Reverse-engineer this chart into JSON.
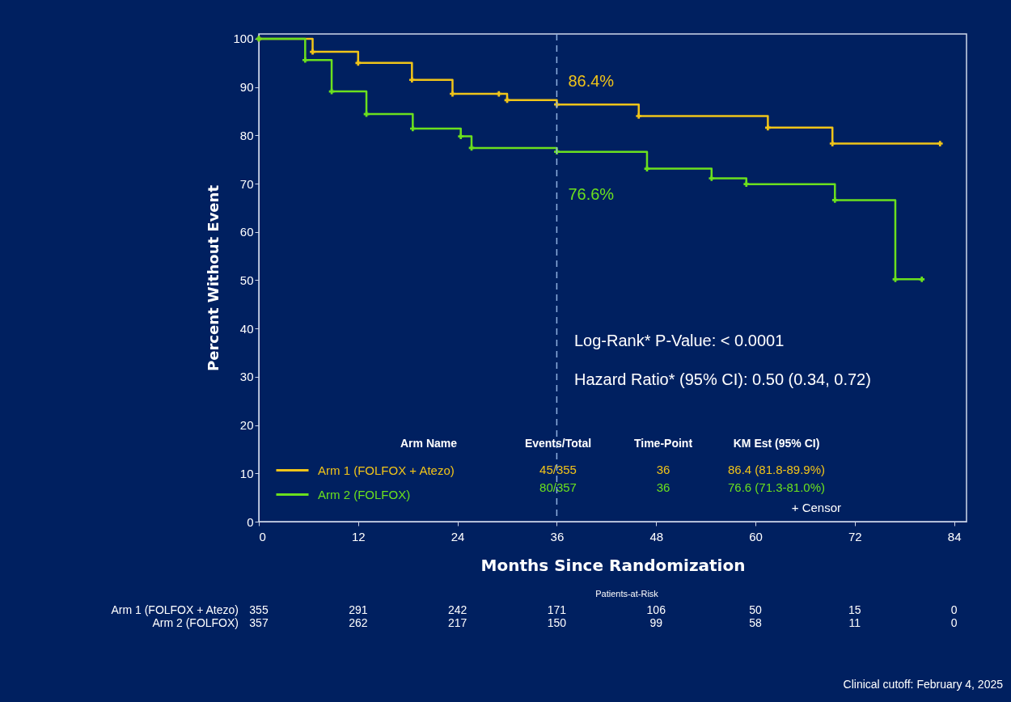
{
  "chart_data": {
    "type": "step",
    "xlabel": "Months Since Randomization",
    "ylabel": "Percent Without Event",
    "xlim": [
      0,
      85.5
    ],
    "ylim": [
      0,
      101
    ],
    "xticks": [
      0,
      12,
      24,
      36,
      48,
      60,
      72,
      84
    ],
    "yticks": [
      0,
      10,
      20,
      30,
      40,
      50,
      60,
      70,
      80,
      90,
      100
    ],
    "grid": false,
    "legend": "bottom",
    "marker": "cross",
    "line_style": "solid",
    "series": [
      {
        "name": "Arm 1 (FOLFOX + Atezo)",
        "color": "#f0c419",
        "x": [
          0,
          6.5,
          12,
          18.5,
          23.4,
          29,
          30,
          36,
          45.9,
          61.5,
          69.3,
          82.3
        ],
        "values": [
          100,
          97.3,
          95,
          91.5,
          88.6,
          88.6,
          87.3,
          86.4,
          84,
          81.6,
          78.3,
          78.3
        ]
      },
      {
        "name": "Arm 2 (FOLFOX)",
        "color": "#6be01e",
        "x": [
          0,
          5.6,
          8.8,
          13,
          18.6,
          24.4,
          25.7,
          36,
          46.9,
          54.7,
          58.9,
          69.6,
          76.9,
          80.1
        ],
        "values": [
          100,
          95.6,
          89.1,
          84.4,
          81.4,
          79.8,
          77.4,
          76.6,
          73.1,
          71.1,
          69.9,
          66.6,
          50.2,
          50.2
        ]
      }
    ],
    "ref_lines": [
      {
        "axis": "x",
        "value": 36,
        "color": "#8fb0e0",
        "line_style": "dashed"
      }
    ],
    "annotations": [
      {
        "text": "86.4%",
        "x": 36,
        "y": 86.4
      },
      {
        "text": "76.6%",
        "x": 36,
        "y": 76.6
      },
      "Log-Rank* P-Value: < 0.0001",
      "Hazard Ratio* (95% CI): 0.50 (0.34, 0.72)",
      "Arm Name",
      "Events/Total",
      "Time-Point",
      "KM Est (95% CI)",
      "45/355",
      "36",
      "86.4 (81.8-89.9%)",
      "80/357",
      "36",
      "76.6 (71.3-81.0%)",
      "+ Censor",
      "Patients-at-Risk",
      "355",
      "291",
      "242",
      "171",
      "106",
      "50",
      "15",
      "0",
      "357",
      "262",
      "217",
      "150",
      "99",
      "58",
      "11",
      "0",
      "Clinical cutoff: February 4, 2025"
    ]
  }
}
